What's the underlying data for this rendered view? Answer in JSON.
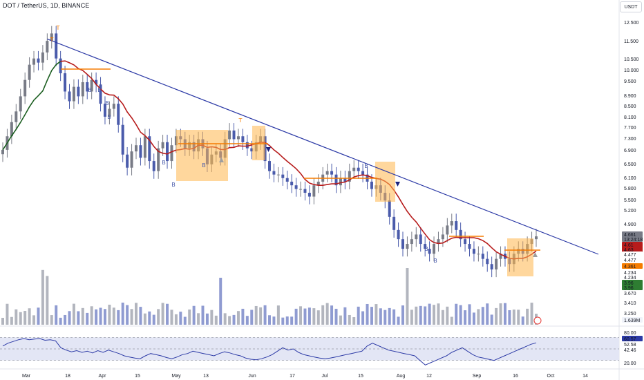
{
  "header": {
    "symbol": "DOT / TetherUS, 1D, BINANCE"
  },
  "currency_button": {
    "label": "USDT"
  },
  "colors": {
    "up_candle": "#787b86",
    "down_candle": "#4a5bab",
    "trendline": "#2c3aa6",
    "ma_red": "#b71c1c",
    "ma_green": "#1b5e20",
    "orange": "#f57c00",
    "range_box": "#ffb74d",
    "volume_blue": "#8f9bd1",
    "volume_grey": "#b2b5be",
    "rsi_line": "#2c3aa6",
    "rsi_band": "#e3e6f5"
  },
  "chart_data": {
    "type": "candlestick",
    "title": "DOT / TetherUS, 1D, BINANCE",
    "x_tick_labels": [
      "Mar",
      "18",
      "Apr",
      "15",
      "May",
      "13",
      "Jun",
      "17",
      "Jul",
      "15",
      "Aug",
      "12",
      "Sep",
      "16",
      "Oct",
      "14"
    ],
    "y_scale": "log",
    "y_tick_labels": [
      "12.500",
      "11.500",
      "10.500",
      "10.000",
      "9.500",
      "8.900",
      "8.500",
      "8.100",
      "7.700",
      "7.300",
      "6.900",
      "6.500",
      "6.100",
      "5.800",
      "5.500",
      "5.200",
      "4.900",
      "3.410",
      "3.250"
    ],
    "price_labels": [
      {
        "text": "4.661",
        "color": "#787b86"
      },
      {
        "text": "13:24:18",
        "color": "#787b86"
      },
      {
        "text": "4.61",
        "color": "#b71c1c"
      },
      {
        "text": "4.63",
        "color": "#b71c1c"
      },
      {
        "text": "4.477",
        "color": "#ffffff"
      },
      {
        "text": "4.477",
        "color": "#ffffff"
      },
      {
        "text": "4.361",
        "color": "#f57c00"
      },
      {
        "text": "4.234",
        "color": "#ffffff"
      },
      {
        "text": "4.234",
        "color": "#ffffff"
      },
      {
        "text": "3.96",
        "color": "#2e7d32"
      },
      {
        "text": "3.96",
        "color": "#2e7d32"
      },
      {
        "text": "3.670",
        "color": "#ffffff"
      },
      {
        "text": "1.639M",
        "color": "#787b86"
      }
    ],
    "close_series": [
      6.95,
      7.4,
      7.9,
      8.3,
      8.9,
      9.6,
      10.3,
      10.6,
      10.4,
      10.9,
      11.5,
      11.9,
      10.6,
      9.9,
      9.1,
      8.7,
      9.3,
      8.9,
      9.5,
      9.1,
      9.6,
      9.4,
      8.6,
      8.1,
      8.4,
      8.6,
      7.8,
      6.8,
      6.4,
      6.9,
      7.1,
      6.7,
      7.4,
      6.6,
      6.3,
      7.0,
      7.2,
      6.6,
      7.1,
      7.4,
      7.3,
      7.0,
      7.2,
      6.9,
      7.3,
      7.0,
      6.5,
      6.8,
      6.9,
      6.7,
      7.3,
      7.6,
      7.3,
      7.4,
      7.2,
      7.0,
      6.9,
      7.2,
      7.4,
      6.6,
      6.3,
      6.2,
      6.2,
      6.1,
      6.0,
      5.9,
      5.8,
      5.8,
      5.7,
      5.6,
      5.9,
      6.0,
      6.2,
      6.3,
      6.2,
      5.9,
      6.1,
      6.0,
      6.3,
      6.4,
      6.3,
      6.2,
      6.0,
      5.8,
      5.9,
      5.7,
      5.5,
      5.1,
      4.8,
      4.6,
      4.4,
      4.5,
      4.6,
      4.7,
      4.5,
      4.4,
      4.3,
      4.5,
      4.6,
      4.7,
      4.9,
      5.0,
      4.8,
      4.6,
      4.5,
      4.4,
      4.3,
      4.3,
      4.2,
      4.1,
      4.0,
      4.2,
      4.3,
      4.2,
      4.1,
      4.3,
      4.4,
      4.3,
      4.5,
      4.6,
      4.66
    ],
    "trendline": {
      "from": {
        "index": 10,
        "value": 11.6
      },
      "to": {
        "index": 145,
        "value": 4.5
      }
    },
    "markers": [
      {
        "text": "T",
        "color": "#f57c00"
      },
      {
        "text": "T",
        "color": "#f57c00"
      },
      {
        "text": "T",
        "color": "#f57c00"
      },
      {
        "text": "B",
        "color": "#4a5bab"
      },
      {
        "text": "B",
        "color": "#4a5bab"
      },
      {
        "text": "B",
        "color": "#4a5bab"
      },
      {
        "text": "B",
        "color": "#4a5bab"
      },
      {
        "text": "B",
        "color": "#4a5bab"
      },
      {
        "text": "B",
        "color": "#4a5bab"
      },
      {
        "text": "B",
        "color": "#4a5bab"
      },
      {
        "text": "B",
        "color": "#4a5bab"
      },
      {
        "text": "B",
        "color": "#4a5bab"
      },
      {
        "text": "B",
        "color": "#4a5bab"
      }
    ],
    "rsi": {
      "levels": [
        "80.00",
        "60.57",
        "52.58",
        "42.46",
        "20.00"
      ],
      "values": [
        55,
        60,
        63,
        66,
        68,
        66,
        67,
        68,
        65,
        66,
        64,
        52,
        48,
        45,
        47,
        44,
        46,
        43,
        47,
        44,
        48,
        45,
        42,
        38,
        36,
        34,
        33,
        38,
        42,
        40,
        38,
        35,
        33,
        36,
        40,
        42,
        46,
        44,
        42,
        40,
        38,
        42,
        45,
        43,
        40,
        38,
        34,
        32,
        31,
        33,
        36,
        40,
        46,
        52,
        48,
        50,
        44,
        40,
        38,
        36,
        34,
        33,
        34,
        36,
        38,
        40,
        42,
        44,
        46,
        55,
        60,
        56,
        52,
        48,
        46,
        44,
        42,
        40,
        38,
        30,
        22,
        26,
        30,
        34,
        38,
        44,
        48,
        52,
        46,
        40,
        36,
        34,
        32,
        30,
        34,
        38,
        42,
        46,
        50,
        54,
        58,
        60.57
      ]
    }
  }
}
